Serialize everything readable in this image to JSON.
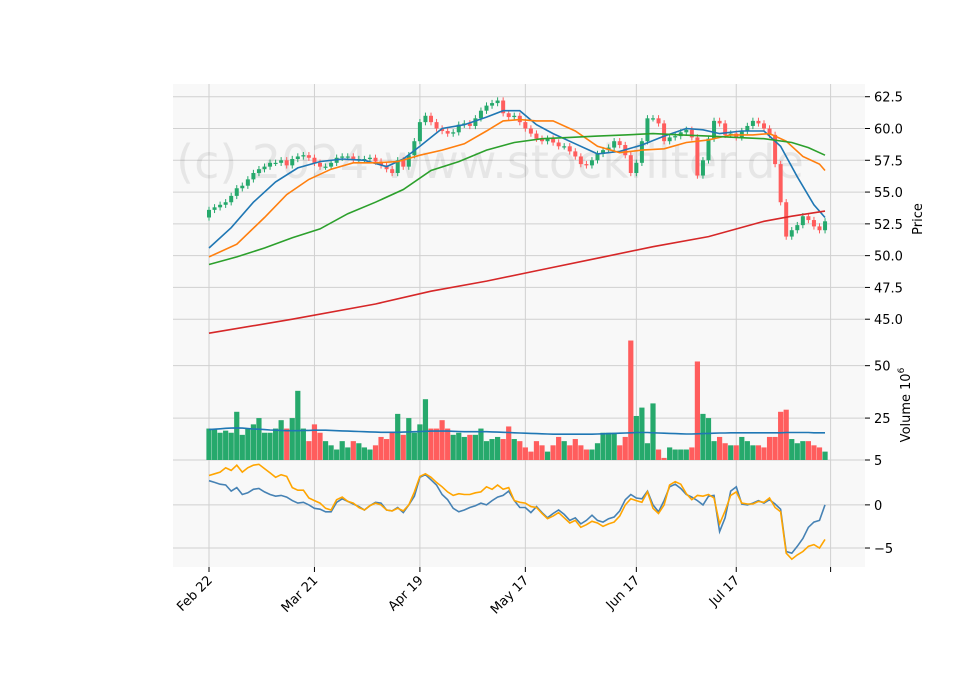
{
  "watermark": "(c) 2024 www.stockfilter.de",
  "colors": {
    "up": "#26a96c",
    "down": "#ff5d5d",
    "sma_fast": "#1f77b4",
    "sma_mid": "#ff7f0e",
    "sma_slow": "#2ca02c",
    "sma_long": "#d62728",
    "vol_ma": "#1f77b4",
    "osc_main": "#4682b4",
    "osc_signal": "#ffa500",
    "panel_bg": "#f8f8f8",
    "grid": "#d0d0d0"
  },
  "chart_data": [
    {
      "type": "candlestick",
      "ylabel": "Price",
      "ylim": [
        42.5,
        63.5
      ],
      "yticks": [
        "45.0",
        "47.5",
        "50.0",
        "52.5",
        "55.0",
        "57.5",
        "60.0",
        "62.5"
      ],
      "x_tick_labels": [
        "Feb 22",
        "Mar 21",
        "Apr 19",
        "May 17",
        "Jun 17",
        "Jul 17"
      ],
      "closes": [
        53.6,
        53.8,
        54.0,
        54.2,
        54.7,
        55.3,
        55.5,
        56.0,
        56.5,
        56.8,
        57.0,
        57.3,
        57.3,
        57.5,
        57.1,
        57.6,
        57.8,
        57.9,
        57.7,
        57.3,
        57.0,
        57.0,
        57.3,
        57.7,
        57.8,
        57.8,
        57.5,
        57.6,
        57.6,
        57.7,
        57.4,
        57.1,
        56.8,
        56.5,
        57.5,
        57.0,
        57.9,
        59.0,
        60.5,
        61.0,
        60.5,
        60.0,
        59.8,
        59.6,
        59.7,
        60.3,
        60.4,
        60.2,
        60.8,
        61.4,
        61.8,
        62.0,
        62.2,
        61.2,
        60.9,
        61.0,
        60.5,
        60.0,
        59.6,
        59.2,
        59.0,
        59.2,
        58.9,
        58.6,
        58.6,
        58.2,
        57.8,
        57.2,
        57.1,
        57.5,
        58.0,
        58.3,
        58.5,
        59.0,
        58.7,
        57.9,
        56.5,
        57.3,
        59.0,
        60.8,
        60.8,
        60.4,
        59.0,
        59.3,
        59.4,
        59.7,
        59.9,
        59.3,
        56.3,
        57.5,
        59.2,
        60.6,
        60.4,
        59.5,
        59.6,
        59.3,
        59.8,
        60.2,
        60.6,
        60.4,
        60.0,
        59.5,
        57.2,
        54.2,
        51.5,
        52.0,
        52.4,
        53.1,
        52.8,
        52.3,
        52.0,
        52.7
      ],
      "volume": {
        "ylabel": "Volume  10^6",
        "ylim": [
          5,
          57
        ],
        "yticks": [
          "5",
          "25",
          "50"
        ],
        "values": [
          20,
          20,
          18,
          19,
          18,
          28,
          17,
          20,
          22,
          25,
          18,
          18,
          20,
          24,
          20,
          25,
          38,
          20,
          14,
          22,
          18,
          14,
          12,
          10,
          14,
          11,
          14,
          13,
          11,
          10,
          12,
          16,
          15,
          18,
          27,
          17,
          25,
          18,
          22,
          34,
          20,
          20,
          24,
          20,
          17,
          18,
          16,
          17,
          17,
          20,
          14,
          15,
          16,
          15,
          21,
          15,
          14,
          11,
          9,
          14,
          12,
          9,
          12,
          16,
          14,
          12,
          15,
          12,
          10,
          10,
          13,
          18,
          18,
          18,
          12,
          16,
          62,
          26,
          30,
          13,
          32,
          10,
          6,
          11,
          10,
          10,
          10,
          11,
          52,
          27,
          25,
          14,
          16,
          13,
          12,
          12,
          16,
          14,
          12,
          12,
          11,
          16,
          16,
          28,
          29,
          15,
          13,
          14,
          14,
          12,
          11,
          9
        ],
        "ma": [
          19.5,
          19.7,
          19.9,
          20.1,
          20.2,
          20.3,
          20.2,
          20.0,
          19.8,
          19.7,
          19.5,
          19.3,
          19.2,
          19.1,
          19.0,
          19.0,
          19.0,
          19.1,
          19.1,
          19.2,
          19.2,
          19.2,
          19.1,
          19.0,
          18.9,
          18.8,
          18.7,
          18.6,
          18.5,
          18.4,
          18.3,
          18.2,
          18.2,
          18.2,
          18.2,
          18.3,
          18.4,
          18.5,
          18.6,
          18.7,
          18.8,
          18.8,
          18.8,
          18.8,
          18.7,
          18.6,
          18.5,
          18.5,
          18.5,
          18.5,
          18.5,
          18.4,
          18.3,
          18.2,
          18.1,
          18.0,
          17.9,
          17.8,
          17.7,
          17.6,
          17.5,
          17.4,
          17.3,
          17.3,
          17.3,
          17.3,
          17.3,
          17.3,
          17.3,
          17.3,
          17.4,
          17.5,
          17.6,
          17.7,
          17.8,
          17.9,
          18.0,
          18.1,
          18.1,
          18.1,
          18.0,
          17.9,
          17.8,
          17.7,
          17.6,
          17.5,
          17.4,
          17.4,
          17.5,
          17.6,
          17.7,
          17.8,
          17.9,
          17.9,
          18.0,
          18.0,
          18.0,
          18.0,
          18.0,
          18.0,
          18.0,
          18.0,
          18.0,
          18.0,
          18.1,
          18.1,
          18.1,
          18.1,
          18.1,
          18.0,
          18.0,
          18.0
        ]
      },
      "oscillator": {
        "ylim": [
          -7.2,
          5.2
        ],
        "yticks": [
          "-5",
          "0"
        ],
        "main": [
          2.8,
          2.6,
          2.4,
          2.3,
          1.6,
          2.0,
          1.2,
          1.4,
          1.8,
          1.9,
          1.5,
          1.2,
          1.0,
          1.1,
          0.9,
          0.5,
          0.2,
          0.3,
          0.0,
          -0.4,
          -0.5,
          -0.8,
          -0.8,
          0.3,
          0.7,
          0.4,
          0.1,
          -0.2,
          -0.6,
          -0.1,
          0.3,
          0.2,
          -0.6,
          -0.7,
          -0.3,
          -0.9,
          0.0,
          1.0,
          3.2,
          3.5,
          2.9,
          2.3,
          1.2,
          0.6,
          -0.4,
          -0.8,
          -0.6,
          -0.3,
          -0.1,
          0.2,
          0.0,
          0.5,
          0.9,
          1.1,
          1.6,
          0.5,
          -0.3,
          -0.3,
          -0.9,
          -0.2,
          -0.9,
          -1.5,
          -1.0,
          -0.6,
          -1.1,
          -1.8,
          -1.5,
          -2.2,
          -1.8,
          -1.2,
          -1.8,
          -2.0,
          -1.6,
          -1.4,
          -0.7,
          0.6,
          1.2,
          0.8,
          0.7,
          1.6,
          0.0,
          -0.8,
          0.5,
          2.1,
          2.4,
          1.9,
          1.2,
          0.9,
          0.5,
          0.0,
          1.0,
          1.1,
          -3.1,
          -1.5,
          1.6,
          2.1,
          0.1,
          0.0,
          0.2,
          0.5,
          0.2,
          0.6,
          0.1,
          -0.5,
          -5.4,
          -5.6,
          -4.8,
          -3.9,
          -2.6,
          -2.0,
          -1.8,
          0.0
        ],
        "signal": [
          3.4,
          3.6,
          3.8,
          4.3,
          4.0,
          4.6,
          3.8,
          4.3,
          4.6,
          4.7,
          4.2,
          3.7,
          3.2,
          3.5,
          3.3,
          2.0,
          1.7,
          1.7,
          0.8,
          0.5,
          0.2,
          -0.4,
          -0.6,
          0.6,
          0.9,
          0.4,
          0.2,
          -0.3,
          -0.6,
          -0.1,
          0.2,
          0.0,
          -0.6,
          -0.7,
          -0.4,
          -0.7,
          0.0,
          1.5,
          3.3,
          3.6,
          3.2,
          2.6,
          2.1,
          1.5,
          1.1,
          1.3,
          1.2,
          1.2,
          1.4,
          1.5,
          2.1,
          1.8,
          2.3,
          1.8,
          2.0,
          0.5,
          0.3,
          0.2,
          -0.2,
          -0.3,
          -1.0,
          -1.6,
          -1.3,
          -0.9,
          -1.5,
          -2.1,
          -1.8,
          -2.6,
          -2.3,
          -1.9,
          -2.1,
          -2.5,
          -2.2,
          -2.0,
          -1.3,
          0.0,
          0.7,
          0.5,
          0.3,
          1.5,
          -0.4,
          -1.0,
          0.0,
          2.3,
          2.7,
          2.4,
          1.3,
          0.6,
          1.1,
          1.0,
          1.2,
          0.8,
          -2.2,
          -0.7,
          1.1,
          1.5,
          0.2,
          0.1,
          0.1,
          0.4,
          0.3,
          0.8,
          -0.3,
          -0.8,
          -5.6,
          -6.3,
          -5.8,
          -5.4,
          -4.8,
          -4.6,
          -5.0,
          -4.0
        ]
      },
      "moving_averages": [
        {
          "key": "sma_fast",
          "points": [
            [
              0,
              50.6
            ],
            [
              4,
              52.2
            ],
            [
              8,
              54.2
            ],
            [
              12,
              55.8
            ],
            [
              16,
              56.9
            ],
            [
              20,
              57.4
            ],
            [
              24,
              57.6
            ],
            [
              28,
              57.5
            ],
            [
              32,
              57.0
            ],
            [
              35,
              57.6
            ],
            [
              38,
              58.6
            ],
            [
              42,
              60.0
            ],
            [
              46,
              60.3
            ],
            [
              50,
              60.9
            ],
            [
              53,
              61.4
            ],
            [
              56,
              61.4
            ],
            [
              59,
              60.3
            ],
            [
              62,
              59.6
            ],
            [
              66,
              58.8
            ],
            [
              70,
              58.0
            ],
            [
              74,
              58.2
            ],
            [
              78,
              58.7
            ],
            [
              82,
              59.4
            ],
            [
              86,
              60.0
            ],
            [
              89,
              59.9
            ],
            [
              92,
              59.6
            ],
            [
              96,
              59.8
            ],
            [
              100,
              59.8
            ],
            [
              103,
              58.6
            ],
            [
              106,
              56.2
            ],
            [
              109,
              54.0
            ],
            [
              111,
              53.0
            ]
          ]
        },
        {
          "key": "sma_mid",
          "points": [
            [
              0,
              49.9
            ],
            [
              5,
              50.9
            ],
            [
              10,
              53.0
            ],
            [
              14,
              54.8
            ],
            [
              18,
              56.0
            ],
            [
              22,
              56.8
            ],
            [
              26,
              57.3
            ],
            [
              30,
              57.3
            ],
            [
              34,
              57.4
            ],
            [
              38,
              57.9
            ],
            [
              42,
              58.3
            ],
            [
              46,
              58.8
            ],
            [
              50,
              59.8
            ],
            [
              53,
              60.6
            ],
            [
              56,
              60.7
            ],
            [
              59,
              60.6
            ],
            [
              62,
              60.6
            ],
            [
              66,
              59.8
            ],
            [
              70,
              58.6
            ],
            [
              74,
              58.1
            ],
            [
              78,
              58.3
            ],
            [
              82,
              58.4
            ],
            [
              86,
              58.9
            ],
            [
              90,
              59.1
            ],
            [
              94,
              59.5
            ],
            [
              98,
              59.5
            ],
            [
              101,
              59.6
            ],
            [
              104,
              59.0
            ],
            [
              107,
              57.8
            ],
            [
              110,
              57.2
            ],
            [
              111,
              56.7
            ]
          ]
        },
        {
          "key": "sma_slow",
          "points": [
            [
              0,
              49.3
            ],
            [
              5,
              49.9
            ],
            [
              10,
              50.6
            ],
            [
              15,
              51.4
            ],
            [
              20,
              52.1
            ],
            [
              25,
              53.3
            ],
            [
              30,
              54.2
            ],
            [
              35,
              55.2
            ],
            [
              40,
              56.7
            ],
            [
              45,
              57.4
            ],
            [
              50,
              58.3
            ],
            [
              55,
              58.9
            ],
            [
              60,
              59.2
            ],
            [
              65,
              59.3
            ],
            [
              70,
              59.4
            ],
            [
              75,
              59.5
            ],
            [
              80,
              59.6
            ],
            [
              85,
              59.5
            ],
            [
              90,
              59.4
            ],
            [
              95,
              59.3
            ],
            [
              100,
              59.2
            ],
            [
              105,
              58.9
            ],
            [
              108,
              58.5
            ],
            [
              111,
              57.9
            ]
          ]
        },
        {
          "key": "sma_long",
          "points": [
            [
              0,
              43.9
            ],
            [
              15,
              45.0
            ],
            [
              30,
              46.2
            ],
            [
              40,
              47.2
            ],
            [
              50,
              48.0
            ],
            [
              60,
              48.9
            ],
            [
              70,
              49.8
            ],
            [
              80,
              50.7
            ],
            [
              90,
              51.5
            ],
            [
              100,
              52.7
            ],
            [
              105,
              53.1
            ],
            [
              111,
              53.5
            ]
          ]
        }
      ]
    }
  ]
}
